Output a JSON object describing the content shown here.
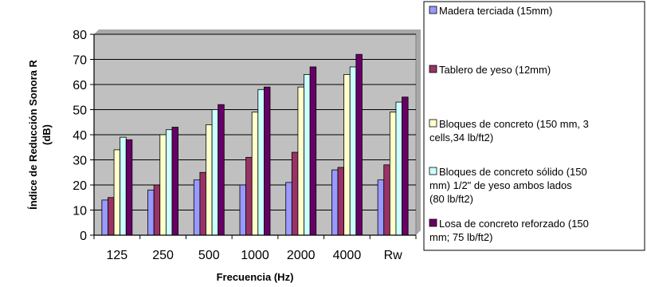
{
  "chart_data": {
    "type": "bar",
    "xlabel": "Frecuencia (Hz)",
    "ylabel": "Índice de Reducción Sonora R (dB)",
    "ylabel_lines": [
      "Índice de Reducción Sonora R",
      "(dB)"
    ],
    "categories": [
      "125",
      "250",
      "500",
      "1000",
      "2000",
      "4000",
      "Rw"
    ],
    "yticks": [
      "0",
      "10",
      "20",
      "30",
      "40",
      "50",
      "60",
      "70",
      "80"
    ],
    "ylim": [
      0,
      80
    ],
    "grid": true,
    "legend_position": "right",
    "plot_background": "#c0c0c0",
    "series": [
      {
        "name": "Madera terciada (15mm)",
        "legend_lines": [
          "Madera terciada (15mm)"
        ],
        "color": "#9999ff",
        "values": [
          14,
          18,
          22,
          20,
          21,
          26,
          22
        ]
      },
      {
        "name": "Tablero de yeso (12mm)",
        "legend_lines": [
          "Tablero de yeso (12mm)"
        ],
        "color": "#993366",
        "values": [
          15,
          20,
          25,
          31,
          33,
          27,
          28
        ]
      },
      {
        "name": "Bloques de concreto (150 mm, 3 cells,34 lb/ft2)",
        "legend_lines": [
          "Bloques de concreto (150 mm, 3",
          "cells,34 lb/ft2)"
        ],
        "color": "#ffffcc",
        "values": [
          34,
          40,
          44,
          49,
          59,
          64,
          49
        ]
      },
      {
        "name": "Bloques de concreto sólido (150 mm) 1/2\" de yeso ambos lados (80 lb/ft2)",
        "legend_lines": [
          "Bloques de concreto sólido (150",
          "mm) 1/2\" de yeso ambos lados",
          "(80 lb/ft2)"
        ],
        "color": "#ccffff",
        "values": [
          39,
          42,
          50,
          58,
          64,
          67,
          53
        ]
      },
      {
        "name": "Losa de concreto reforzado (150 mm; 75 lb/ft2)",
        "legend_lines": [
          "Losa de concreto reforzado (150",
          "mm; 75 lb/ft2)"
        ],
        "color": "#660066",
        "values": [
          38,
          43,
          52,
          59,
          67,
          72,
          55
        ]
      }
    ]
  }
}
